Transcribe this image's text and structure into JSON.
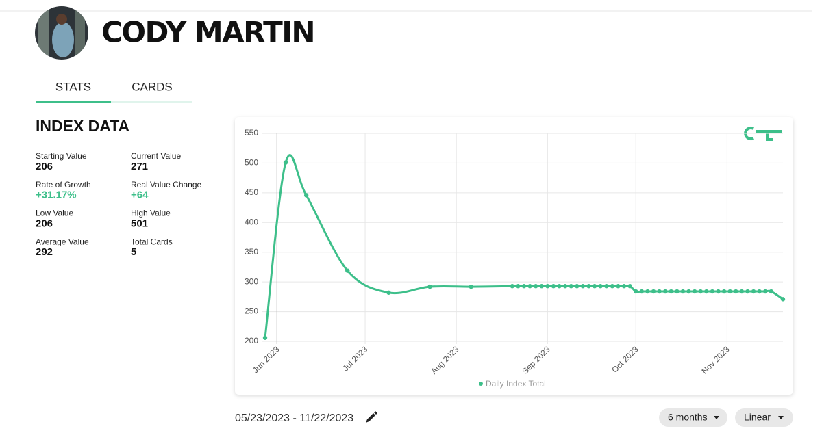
{
  "header": {
    "name": "CODY MARTIN"
  },
  "tabs": [
    "STATS",
    "CARDS"
  ],
  "index_data": {
    "title": "INDEX DATA",
    "stats": [
      {
        "label": "Starting Value",
        "value": "206"
      },
      {
        "label": "Current Value",
        "value": "271"
      },
      {
        "label": "Rate of Growth",
        "value": "+31.17%"
      },
      {
        "label": "Real Value Change",
        "value": "+64"
      },
      {
        "label": "Low Value",
        "value": "206"
      },
      {
        "label": "High Value",
        "value": "501"
      },
      {
        "label": "Average Value",
        "value": "292"
      },
      {
        "label": "Total Cards",
        "value": "5"
      }
    ]
  },
  "chart_data": {
    "type": "line",
    "x": [
      "2023-05-28",
      "2023-06-04",
      "2023-06-11",
      "2023-06-25",
      "2023-07-09",
      "2023-07-23",
      "2023-08-06",
      "2023-08-20",
      "2023-08-22",
      "2023-08-24",
      "2023-08-26",
      "2023-08-28",
      "2023-08-30",
      "2023-09-01",
      "2023-09-03",
      "2023-09-05",
      "2023-09-07",
      "2023-09-09",
      "2023-09-11",
      "2023-09-13",
      "2023-09-15",
      "2023-09-17",
      "2023-09-19",
      "2023-09-21",
      "2023-09-23",
      "2023-09-25",
      "2023-09-27",
      "2023-09-29",
      "2023-10-01",
      "2023-10-03",
      "2023-10-05",
      "2023-10-07",
      "2023-10-09",
      "2023-10-11",
      "2023-10-13",
      "2023-10-15",
      "2023-10-17",
      "2023-10-19",
      "2023-10-21",
      "2023-10-23",
      "2023-10-25",
      "2023-10-27",
      "2023-10-29",
      "2023-10-31",
      "2023-11-02",
      "2023-11-04",
      "2023-11-06",
      "2023-11-08",
      "2023-11-10",
      "2023-11-12",
      "2023-11-14",
      "2023-11-16",
      "2023-11-20"
    ],
    "series": [
      {
        "name": "Daily Index Total",
        "color": "#3dbf8a",
        "values": [
          206,
          501,
          446,
          319,
          282,
          292,
          292,
          293,
          293,
          293,
          293,
          293,
          293,
          293,
          293,
          293,
          293,
          293,
          293,
          293,
          293,
          293,
          293,
          293,
          293,
          293,
          293,
          293,
          284,
          284,
          284,
          284,
          284,
          284,
          284,
          284,
          284,
          284,
          284,
          284,
          284,
          284,
          284,
          284,
          284,
          284,
          284,
          284,
          284,
          284,
          284,
          284,
          271
        ]
      }
    ],
    "xlim": [
      "2023-05-28",
      "2023-11-20"
    ],
    "xticks": [
      {
        "value": "2023-06-01",
        "label": "Jun 2023"
      },
      {
        "value": "2023-07-01",
        "label": "Jul 2023"
      },
      {
        "value": "2023-08-01",
        "label": "Aug 2023"
      },
      {
        "value": "2023-09-01",
        "label": "Sep 2023"
      },
      {
        "value": "2023-10-01",
        "label": "Oct 2023"
      },
      {
        "value": "2023-11-01",
        "label": "Nov 2023"
      }
    ],
    "ylim": [
      200,
      550
    ],
    "yticks": [
      200,
      250,
      300,
      350,
      400,
      450,
      500,
      550
    ],
    "grid": true
  },
  "date_range": "05/23/2023 - 11/22/2023",
  "controls": [
    "6 months",
    "Linear"
  ]
}
